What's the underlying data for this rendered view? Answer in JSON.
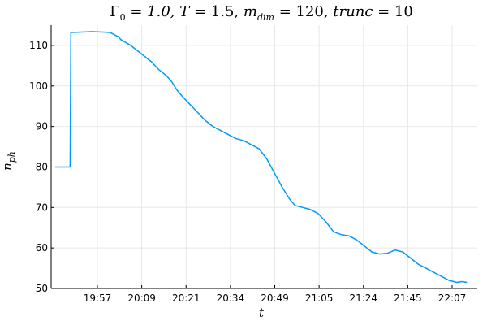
{
  "chart_data": {
    "type": "line",
    "title": "Γ₀ = 1.0, T = 1.5, m_dim = 120, trunc = 10",
    "xlabel": "t",
    "ylabel": "n_ph",
    "ylim": [
      50,
      115
    ],
    "yticks": [
      50,
      60,
      70,
      80,
      90,
      100,
      110
    ],
    "xticks": [
      "19:57",
      "20:09",
      "20:21",
      "20:34",
      "20:49",
      "21:05",
      "21:24",
      "21:45",
      "22:07"
    ],
    "xlim_minutes": [
      -3,
      28
    ],
    "grid": true,
    "legend": "none",
    "series": [
      {
        "color": "#009AF9",
        "points": [
          [
            -2.2,
            80.0
          ],
          [
            0.7,
            80.0
          ],
          [
            0.85,
            113.2
          ],
          [
            3.0,
            113.3
          ],
          [
            5.0,
            113.4
          ],
          [
            7.0,
            113.3
          ],
          [
            8.5,
            113.2
          ],
          [
            9.5,
            112.5
          ],
          [
            10.3,
            112.0
          ],
          [
            10.5,
            111.5
          ],
          [
            12.5,
            110.0
          ],
          [
            14.5,
            108.0
          ],
          [
            15.0,
            107.5
          ],
          [
            16.5,
            106.0
          ],
          [
            18.0,
            104.0
          ],
          [
            19.5,
            102.5
          ],
          [
            20.5,
            101.0
          ],
          [
            21.5,
            99.0
          ],
          [
            22.5,
            97.5
          ],
          [
            24.0,
            95.5
          ],
          [
            25.5,
            93.5
          ],
          [
            27.0,
            91.5
          ],
          [
            28.5,
            90.0
          ],
          [
            30.0,
            89.0
          ],
          [
            31.5,
            88.0
          ],
          [
            33.0,
            87.0
          ],
          [
            34.5,
            86.5
          ],
          [
            36.0,
            85.5
          ],
          [
            37.5,
            84.5
          ],
          [
            39.0,
            82.0
          ],
          [
            40.5,
            78.5
          ],
          [
            42.0,
            75.0
          ],
          [
            43.5,
            72.0
          ],
          [
            44.5,
            70.5
          ],
          [
            46.0,
            70.0
          ],
          [
            47.5,
            69.5
          ],
          [
            49.0,
            68.5
          ],
          [
            50.5,
            66.5
          ],
          [
            52.0,
            64.0
          ],
          [
            53.5,
            63.3
          ],
          [
            55.0,
            63.0
          ],
          [
            56.5,
            62.0
          ],
          [
            58.0,
            60.5
          ],
          [
            59.5,
            59.0
          ],
          [
            61.0,
            58.5
          ],
          [
            62.5,
            58.7
          ],
          [
            64.0,
            59.5
          ],
          [
            65.5,
            59.0
          ],
          [
            67.0,
            57.5
          ],
          [
            68.5,
            56.0
          ],
          [
            70.0,
            55.0
          ],
          [
            71.5,
            54.0
          ],
          [
            73.0,
            53.0
          ],
          [
            74.5,
            52.0
          ],
          [
            76.0,
            51.5
          ],
          [
            77.0,
            51.7
          ],
          [
            78.0,
            51.5
          ]
        ]
      }
    ]
  }
}
